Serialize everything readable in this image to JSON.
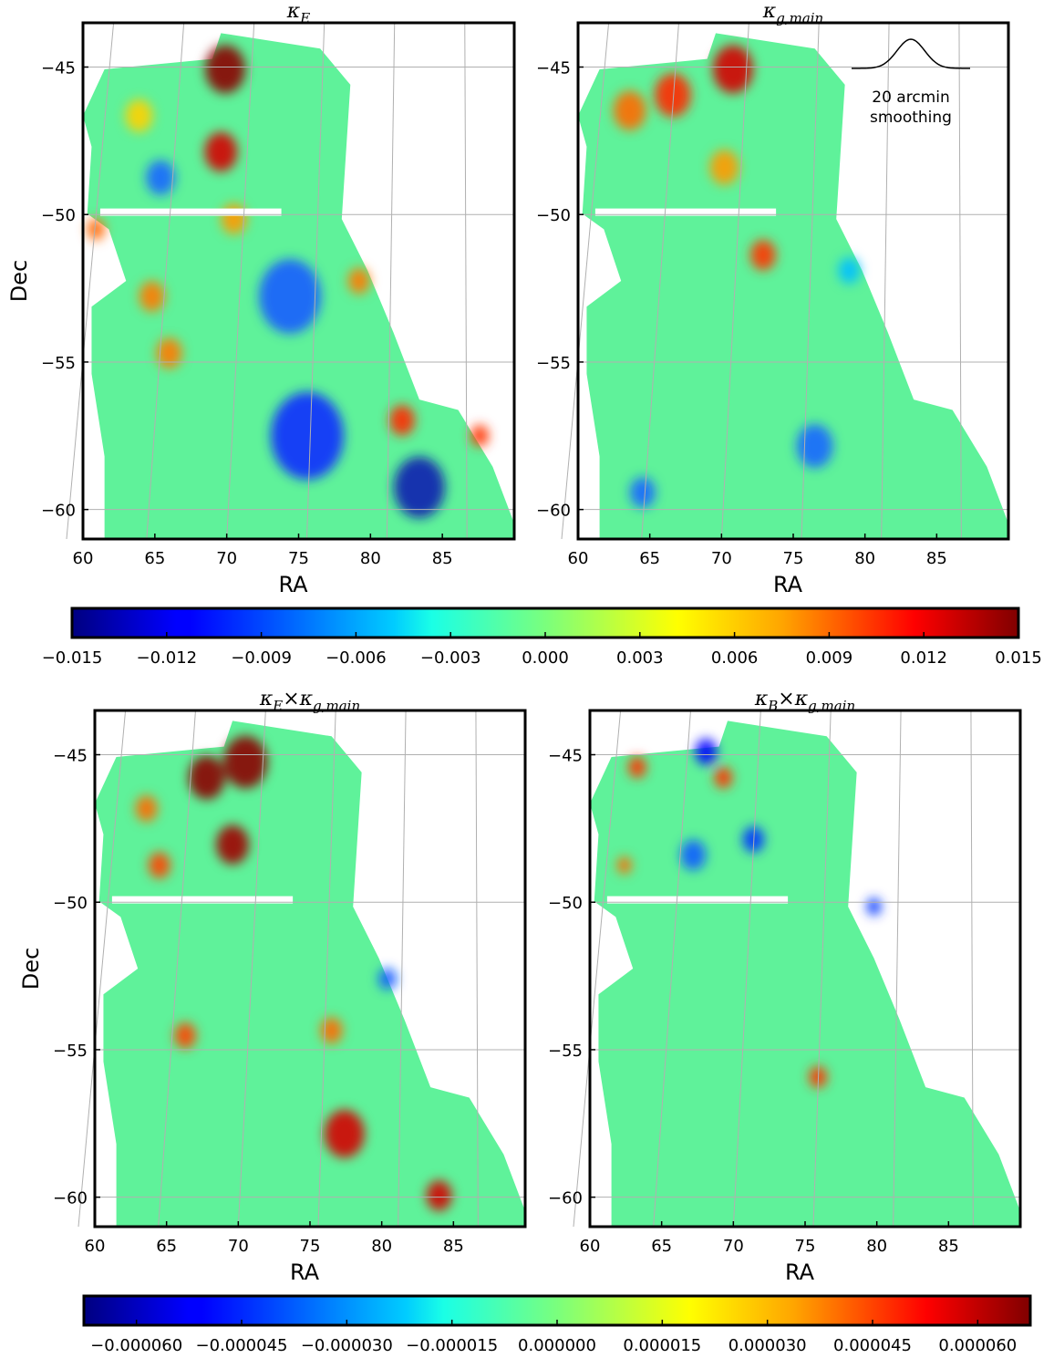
{
  "figure": {
    "panels": [
      {
        "id": "kE",
        "title_main": "κ",
        "title_sub": "E"
      },
      {
        "id": "kg",
        "title_main": "κ",
        "title_sub": "g,main"
      },
      {
        "id": "kExkg",
        "title_main": "κ",
        "title_sub": "E",
        "title_mid": "×κ",
        "title_sub2": "g,main"
      },
      {
        "id": "kBxkg",
        "title_main": "κ",
        "title_sub": "B",
        "title_mid": "×κ",
        "title_sub2": "g,main"
      }
    ],
    "annotation": {
      "line1": "20 arcmin",
      "line2": "smoothing"
    }
  },
  "chart_data": {
    "type": "heatmap",
    "xlabel": "RA",
    "ylabel": "Dec",
    "xlim": [
      60,
      90
    ],
    "ylim": [
      -61,
      -43.5
    ],
    "xticks": [
      "60",
      "65",
      "70",
      "75",
      "80",
      "85"
    ],
    "xtick_values": [
      60,
      65,
      70,
      75,
      80,
      85
    ],
    "yticks": [
      "−45",
      "−50",
      "−55",
      "−60"
    ],
    "ytick_values": [
      -45,
      -50,
      -55,
      -60
    ],
    "grid": true,
    "colormap": "jet",
    "colorbar_top": {
      "range": [
        -0.015,
        0.015
      ],
      "tick_values": [
        -0.015,
        -0.012,
        -0.009,
        -0.006,
        -0.003,
        0,
        0.003,
        0.006,
        0.009,
        0.012,
        0.015
      ],
      "tick_labels": [
        "−0.015",
        "−0.012",
        "−0.009",
        "−0.006",
        "−0.003",
        "0.000",
        "0.003",
        "0.006",
        "0.009",
        "0.012",
        "0.015"
      ]
    },
    "colorbar_bottom": {
      "range": [
        -6.75e-05,
        6.75e-05
      ],
      "tick_values": [
        -6e-05,
        -4.5e-05,
        -3e-05,
        -1.5e-05,
        0,
        1.5e-05,
        3e-05,
        4.5e-05,
        6e-05
      ],
      "tick_labels": [
        "−0.000060",
        "−0.000045",
        "−0.000030",
        "−0.000015",
        "0.000000",
        "0.000015",
        "0.000030",
        "0.000045",
        "0.000060"
      ]
    },
    "colors": {
      "background_field": "#5ff29a",
      "grid": "#b0b0b0",
      "frame": "#000000"
    }
  }
}
